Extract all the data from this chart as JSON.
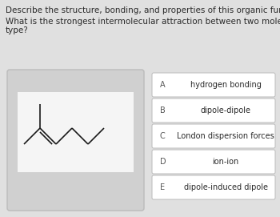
{
  "background_color": "#e0e0e0",
  "title_line1": "Describe the structure, bonding, and properties of this organic functional group.",
  "title_line2": "What is the strongest intermolecular attraction between two molecules of this",
  "title_line3": "type?",
  "title_fontsize": 7.5,
  "options": [
    {
      "letter": "A",
      "text": "hydrogen bonding"
    },
    {
      "letter": "B",
      "text": "dipole-dipole"
    },
    {
      "letter": "C",
      "text": "London dispersion forces"
    },
    {
      "letter": "D",
      "text": "ion-ion"
    },
    {
      "letter": "E",
      "text": "dipole-induced dipole"
    }
  ],
  "option_box_facecolor": "#ffffff",
  "option_box_edgecolor": "#bbbbbb",
  "mol_outer_facecolor": "#d0d0d0",
  "mol_outer_edgecolor": "#bbbbbb",
  "mol_inner_facecolor": "#f5f5f5",
  "text_color": "#2a2a2a",
  "letter_color": "#555555",
  "mol_line_color": "#1a1a1a"
}
